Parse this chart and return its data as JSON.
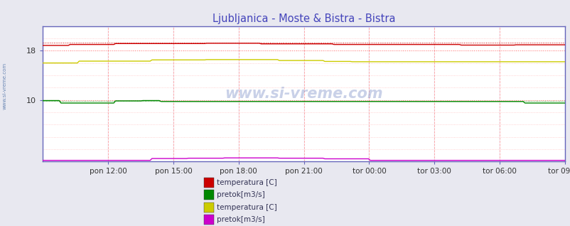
{
  "title": "Ljubljanica - Moste & Bistra - Bistra",
  "title_color": "#4444bb",
  "background_color": "#e8e8f0",
  "plot_bg_color": "#ffffff",
  "x_ticks": [
    "pon 12:00",
    "pon 15:00",
    "pon 18:00",
    "pon 21:00",
    "tor 00:00",
    "tor 03:00",
    "tor 06:00",
    "tor 09:00"
  ],
  "ylim": [
    0,
    22
  ],
  "yticks": [
    10,
    18
  ],
  "watermark": "www.si-vreme.com",
  "lj_temp_color": "#cc0000",
  "lj_pretok_color": "#008800",
  "bi_temp_color": "#cccc00",
  "bi_pretok_color": "#cc00cc",
  "lj_temp_val": 19.0,
  "lj_temp_avg_val": 19.35,
  "lj_pretok_val": 9.75,
  "bi_temp_val": 16.3,
  "bi_pretok_val": 0.25,
  "n_points": 288
}
